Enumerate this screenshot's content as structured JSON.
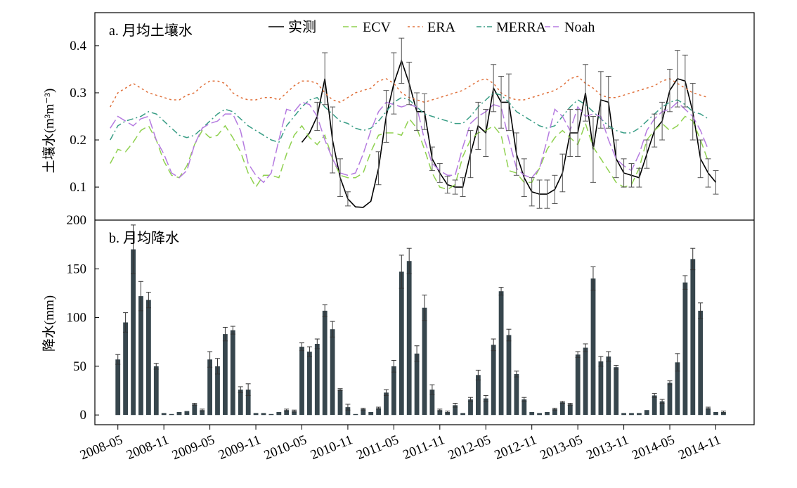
{
  "colors": {
    "observed": "#000000",
    "ECV": "#8fd14f",
    "ERA": "#e0703a",
    "MERRA": "#3a9e86",
    "Noah": "#b57be0",
    "bar": "#37464d"
  },
  "chart_data": [
    {
      "type": "line",
      "title": "a. 月均土壤水",
      "ylabel": "土壤水(m³m⁻³)",
      "ylim": [
        0.03,
        0.47
      ],
      "yticks": [
        0.1,
        0.2,
        0.3,
        0.4
      ],
      "yticklabels": [
        "0.1",
        "0.2",
        "0.3",
        "0.4"
      ],
      "legend_position": "top",
      "x_start": "2008-02",
      "x_end": "2015-04",
      "grid": false,
      "series": [
        {
          "name": "实测",
          "key": "observed",
          "style": "solid",
          "start": "2010-05",
          "values": [
            0.195,
            0.215,
            0.25,
            0.33,
            0.2,
            0.12,
            0.075,
            0.058,
            0.057,
            0.07,
            0.14,
            0.25,
            0.32,
            0.368,
            0.32,
            0.26,
            0.26,
            0.16,
            0.13,
            0.105,
            0.1,
            0.1,
            0.17,
            0.23,
            0.215,
            0.31,
            0.28,
            0.28,
            0.17,
            0.12,
            0.09,
            0.085,
            0.085,
            0.095,
            0.13,
            0.215,
            0.215,
            0.3,
            0.18,
            0.285,
            0.28,
            0.16,
            0.13,
            0.125,
            0.12,
            0.17,
            0.22,
            0.24,
            0.305,
            0.33,
            0.325,
            0.26,
            0.16,
            0.13,
            0.11
          ],
          "errors": [
            0,
            0,
            0.03,
            0.055,
            0.07,
            0.04,
            0.015,
            0,
            0,
            0,
            0.035,
            0.055,
            0.065,
            0.048,
            0.045,
            0.04,
            0.038,
            0.025,
            0.02,
            0.018,
            0.015,
            0.02,
            0.05,
            0.05,
            0.05,
            0.05,
            0.055,
            0.06,
            0.045,
            0.04,
            0.03,
            0.03,
            0.03,
            0.03,
            0.04,
            0.05,
            0.05,
            0.06,
            0.07,
            0.06,
            0.055,
            0.04,
            0.03,
            0.025,
            0.02,
            0.03,
            0.035,
            0.04,
            0.045,
            0.06,
            0.055,
            0.06,
            0.04,
            0.03,
            0.025
          ]
        },
        {
          "name": "ECV",
          "key": "ECV",
          "style": "longdash",
          "start": "2008-04",
          "values": [
            0.15,
            0.18,
            0.175,
            0.195,
            0.22,
            0.23,
            0.2,
            0.155,
            0.125,
            0.12,
            0.145,
            0.19,
            0.22,
            0.205,
            0.21,
            0.23,
            0.205,
            0.175,
            0.13,
            0.1,
            0.125,
            0.125,
            0.12,
            0.17,
            0.21,
            0.23,
            0.205,
            0.19,
            0.21,
            0.16,
            0.125,
            0.12,
            0.12,
            0.13,
            0.175,
            0.21,
            0.215,
            0.215,
            0.21,
            0.245,
            0.225,
            0.18,
            0.13,
            0.1,
            0.095,
            0.105,
            0.165,
            0.2,
            0.215,
            0.22,
            0.23,
            0.21,
            0.135,
            0.13,
            0.11,
            0.11,
            0.14,
            0.18,
            0.205,
            0.22,
            0.205,
            0.19,
            0.235,
            0.185,
            0.16,
            0.135,
            0.11,
            0.1,
            0.105,
            0.14,
            0.2,
            0.22,
            0.235,
            0.22,
            0.23,
            0.25,
            0.24,
            0.2,
            0.155
          ]
        },
        {
          "name": "ERA",
          "key": "ERA",
          "style": "dotted",
          "start": "2008-04",
          "values": [
            0.27,
            0.3,
            0.31,
            0.32,
            0.31,
            0.3,
            0.295,
            0.29,
            0.285,
            0.285,
            0.295,
            0.3,
            0.315,
            0.325,
            0.325,
            0.32,
            0.3,
            0.29,
            0.285,
            0.285,
            0.29,
            0.29,
            0.285,
            0.3,
            0.315,
            0.325,
            0.325,
            0.32,
            0.3,
            0.285,
            0.28,
            0.29,
            0.3,
            0.305,
            0.31,
            0.325,
            0.33,
            0.32,
            0.3,
            0.29,
            0.285,
            0.28,
            0.285,
            0.29,
            0.295,
            0.3,
            0.305,
            0.315,
            0.325,
            0.33,
            0.32,
            0.3,
            0.29,
            0.285,
            0.285,
            0.29,
            0.295,
            0.3,
            0.305,
            0.315,
            0.33,
            0.335,
            0.32,
            0.31,
            0.295,
            0.29,
            0.29,
            0.295,
            0.3,
            0.305,
            0.31,
            0.315,
            0.325,
            0.33,
            0.32,
            0.31,
            0.3,
            0.295,
            0.29
          ]
        },
        {
          "name": "MERRA",
          "key": "MERRA",
          "style": "dashdot",
          "start": "2008-04",
          "values": [
            0.2,
            0.23,
            0.24,
            0.245,
            0.25,
            0.26,
            0.255,
            0.24,
            0.225,
            0.21,
            0.205,
            0.21,
            0.225,
            0.24,
            0.255,
            0.265,
            0.26,
            0.245,
            0.23,
            0.22,
            0.21,
            0.2,
            0.195,
            0.23,
            0.25,
            0.27,
            0.285,
            0.29,
            0.27,
            0.255,
            0.24,
            0.235,
            0.225,
            0.22,
            0.225,
            0.24,
            0.26,
            0.28,
            0.29,
            0.285,
            0.27,
            0.255,
            0.25,
            0.245,
            0.24,
            0.235,
            0.235,
            0.25,
            0.27,
            0.285,
            0.3,
            0.295,
            0.28,
            0.26,
            0.25,
            0.24,
            0.23,
            0.225,
            0.23,
            0.25,
            0.27,
            0.285,
            0.275,
            0.26,
            0.245,
            0.23,
            0.22,
            0.215,
            0.215,
            0.225,
            0.24,
            0.255,
            0.27,
            0.28,
            0.285,
            0.275,
            0.26,
            0.255,
            0.245
          ]
        },
        {
          "name": "Noah",
          "key": "Noah",
          "style": "dash",
          "start": "2008-04",
          "values": [
            0.225,
            0.25,
            0.24,
            0.23,
            0.245,
            0.25,
            0.2,
            0.17,
            0.13,
            0.12,
            0.135,
            0.19,
            0.225,
            0.235,
            0.24,
            0.255,
            0.255,
            0.22,
            0.15,
            0.125,
            0.11,
            0.13,
            0.2,
            0.265,
            0.26,
            0.28,
            0.275,
            0.25,
            0.2,
            0.16,
            0.13,
            0.125,
            0.13,
            0.17,
            0.22,
            0.26,
            0.28,
            0.275,
            0.27,
            0.275,
            0.27,
            0.2,
            0.15,
            0.135,
            0.125,
            0.125,
            0.185,
            0.235,
            0.25,
            0.26,
            0.275,
            0.27,
            0.2,
            0.14,
            0.125,
            0.12,
            0.14,
            0.2,
            0.265,
            0.25,
            0.22,
            0.27,
            0.25,
            0.255,
            0.25,
            0.2,
            0.16,
            0.145,
            0.135,
            0.17,
            0.22,
            0.245,
            0.26,
            0.265,
            0.28,
            0.265,
            0.25,
            0.22,
            0.18
          ]
        }
      ]
    },
    {
      "type": "bar",
      "title": "b. 月均降水",
      "ylabel": "降水(mm)",
      "ylim": [
        -10,
        200
      ],
      "yticks": [
        0,
        50,
        100,
        150,
        200
      ],
      "yticklabels": [
        "0",
        "50",
        "100",
        "150",
        "200"
      ],
      "x_start": "2008-02",
      "x_end": "2015-04",
      "start": "2008-05",
      "values": [
        57,
        95,
        170,
        122,
        118,
        50,
        2,
        1,
        3,
        4,
        11,
        5,
        57,
        50,
        83,
        87,
        26,
        26,
        2,
        2,
        1,
        3,
        5,
        4,
        70,
        65,
        73,
        107,
        88,
        26,
        8,
        1,
        6,
        3,
        7,
        23,
        50,
        147,
        158,
        63,
        110,
        26,
        5,
        3,
        10,
        2,
        16,
        41,
        17,
        72,
        127,
        82,
        42,
        16,
        3,
        2,
        3,
        6,
        13,
        11,
        62,
        69,
        140,
        55,
        60,
        49,
        2,
        2,
        2,
        5,
        20,
        14,
        33,
        54,
        136,
        160,
        107,
        7,
        3,
        3
      ],
      "errors": [
        5,
        10,
        25,
        15,
        8,
        3,
        0,
        0,
        0,
        0,
        1,
        1,
        8,
        8,
        7,
        4,
        3,
        6,
        0,
        0,
        0,
        0,
        1,
        1,
        4,
        5,
        5,
        6,
        8,
        1,
        3,
        0,
        1,
        0,
        1,
        3,
        6,
        17,
        13,
        8,
        13,
        5,
        1,
        1,
        2,
        0,
        2,
        5,
        3,
        6,
        4,
        6,
        3,
        2,
        0,
        0,
        0,
        1,
        1,
        1,
        3,
        4,
        12,
        5,
        5,
        2,
        0,
        0,
        0,
        0,
        2,
        2,
        2,
        9,
        7,
        11,
        8,
        1,
        0,
        1
      ]
    }
  ],
  "x_axis": {
    "tick_labels": [
      "2008-05",
      "2008-11",
      "2009-05",
      "2009-11",
      "2010-05",
      "2010-11",
      "2011-05",
      "2011-11",
      "2012-05",
      "2012-11",
      "2013-05",
      "2013-11",
      "2014-05",
      "2014-11"
    ]
  }
}
